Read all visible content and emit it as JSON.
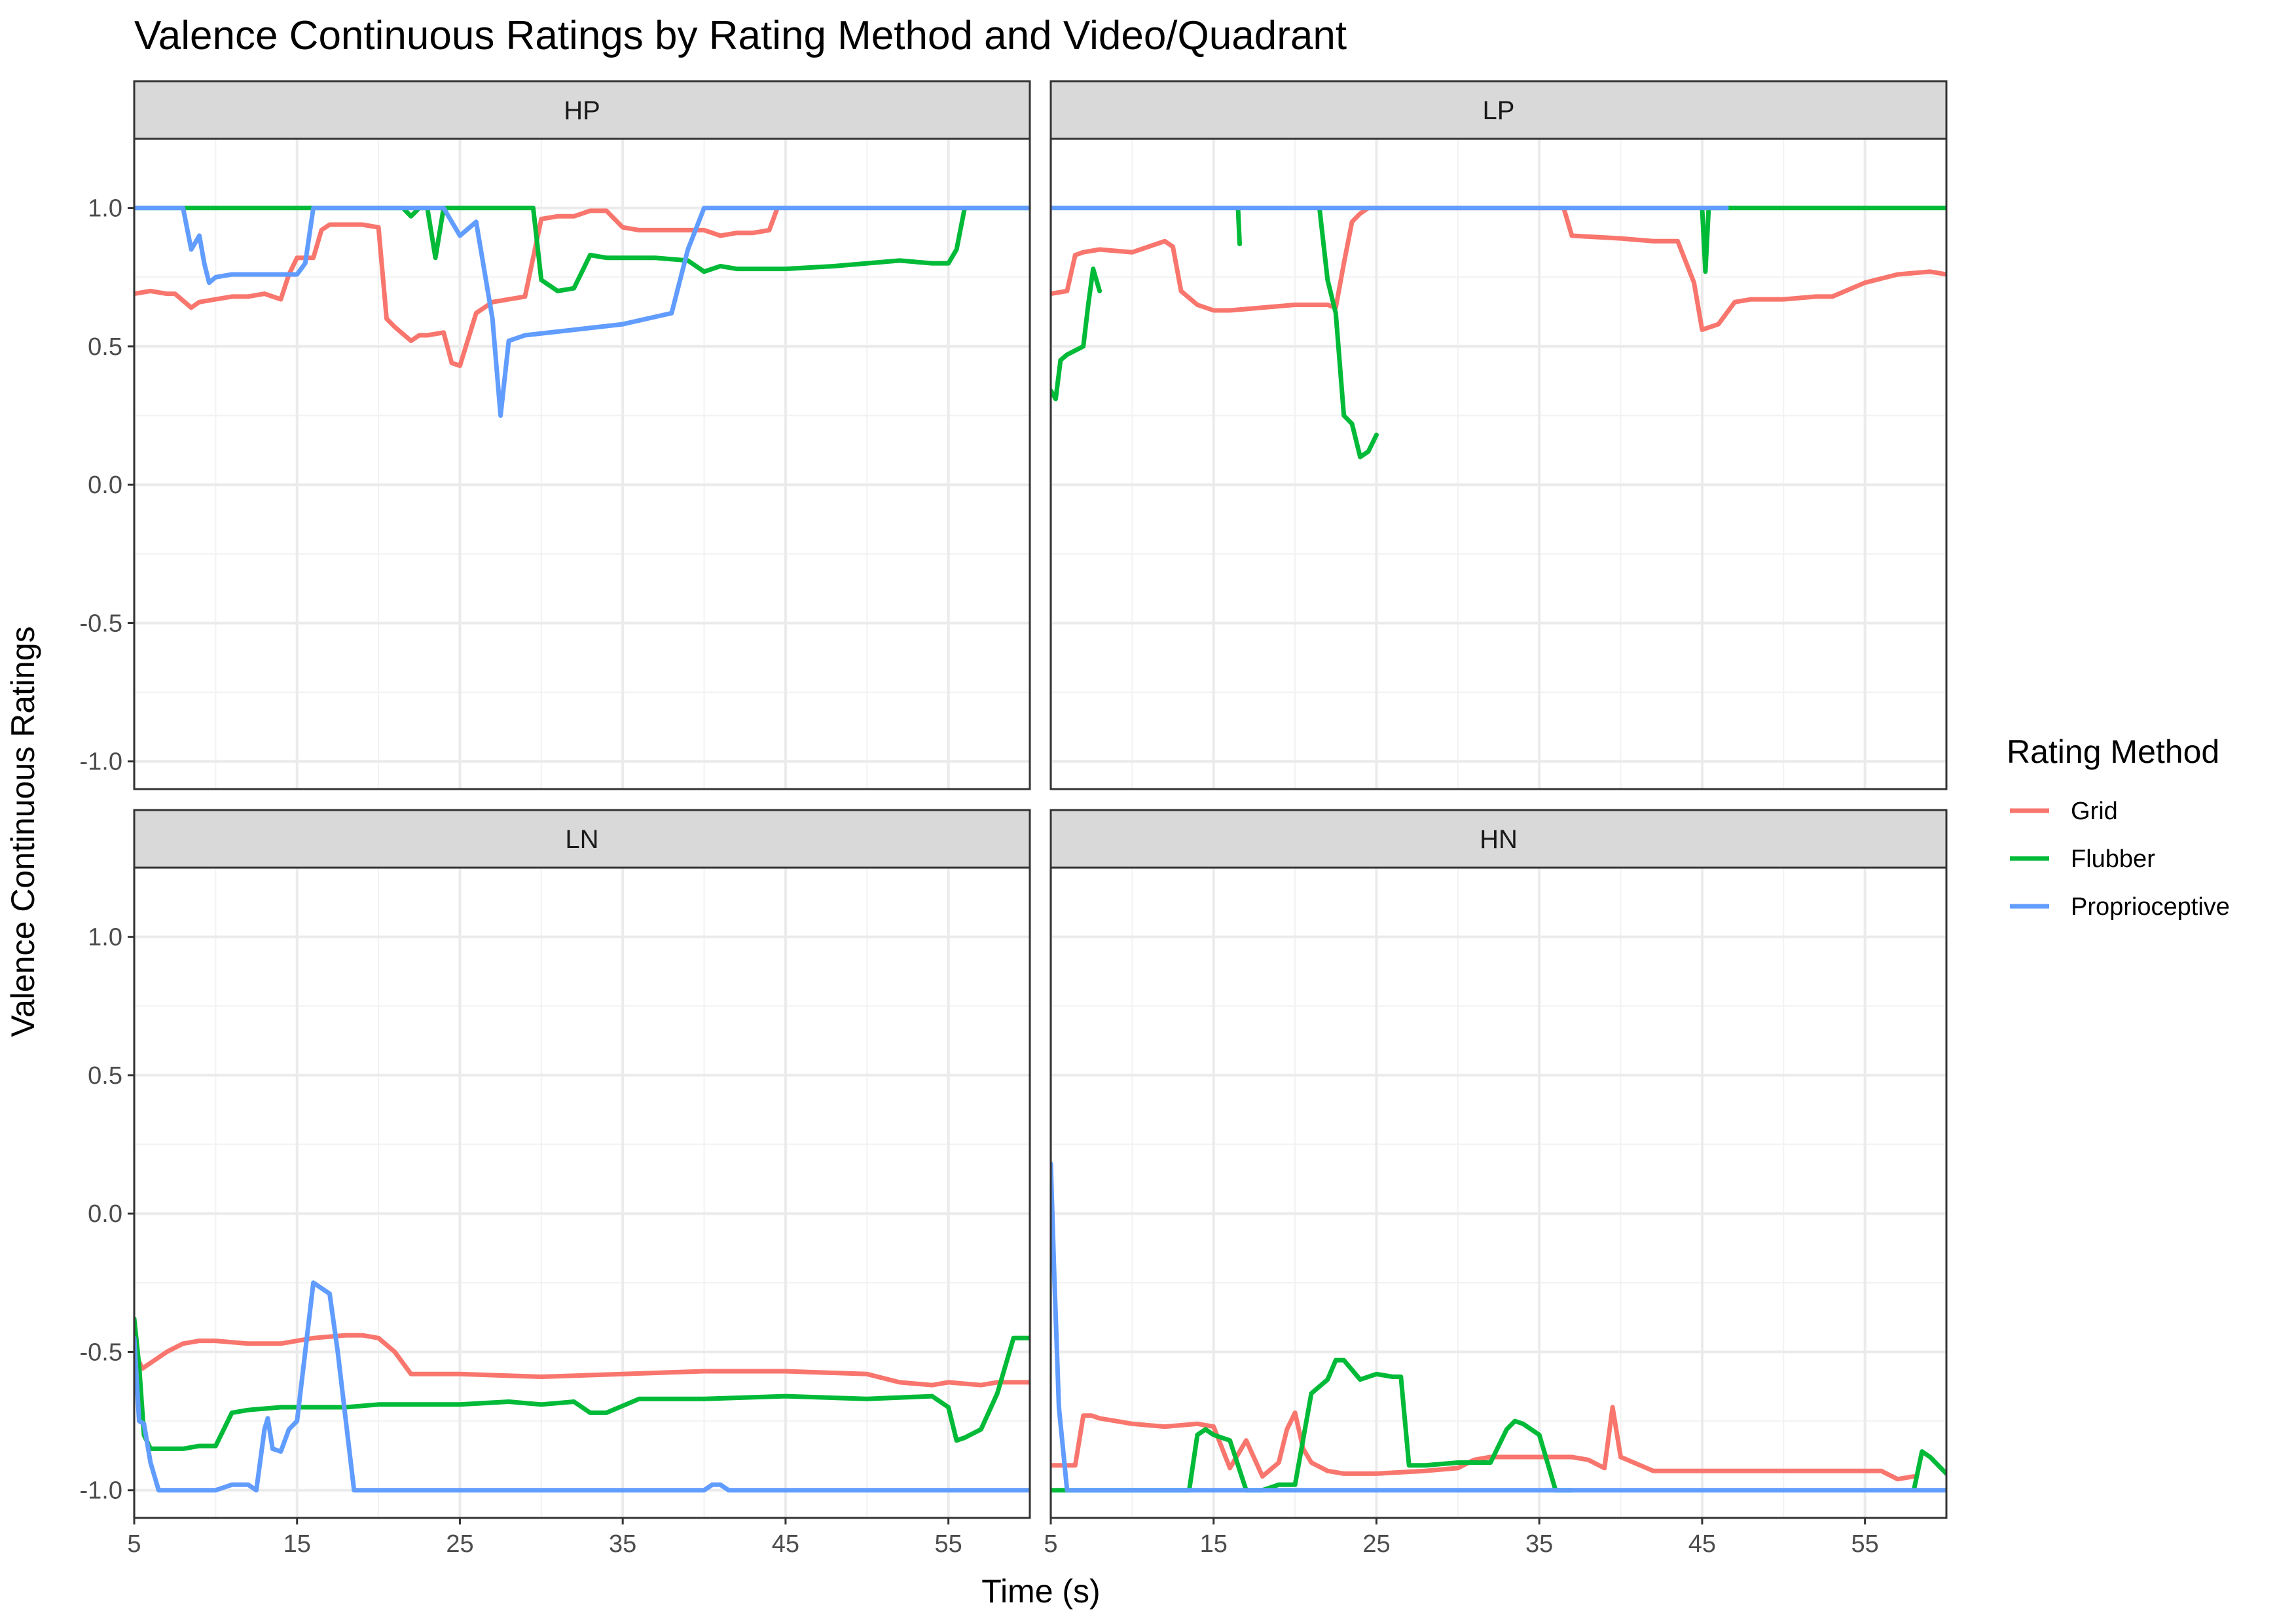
{
  "chart_data": {
    "type": "line",
    "title": "Valence Continuous Ratings by Rating Method and Video/Quadrant",
    "xlabel": "Time (s)",
    "ylabel": "Valence Continuous Ratings",
    "xlim": [
      5,
      60
    ],
    "ylim": [
      -1.1,
      1.25
    ],
    "x_ticks": [
      5,
      15,
      25,
      35,
      45,
      55
    ],
    "x_tick_labels": [
      "5",
      "15",
      "25",
      "35",
      "45",
      "55"
    ],
    "y_ticks": [
      1.0,
      0.5,
      0.0,
      -0.5,
      -1.0
    ],
    "y_tick_labels": [
      "1.0",
      "0.5",
      "0.0",
      "-0.5",
      "-1.0"
    ],
    "grid": true,
    "legend": {
      "title": "Rating Method",
      "position": "right",
      "entries": [
        "Grid",
        "Flubber",
        "Proprioceptive"
      ]
    },
    "colors": {
      "Grid": "#F8766D",
      "Flubber": "#00BA38",
      "Proprioceptive": "#619CFF"
    },
    "panels": [
      {
        "label": "HP",
        "series": [
          {
            "name": "Grid",
            "x": [
              5,
              6,
              7,
              7.5,
              8.5,
              9,
              10,
              11,
              12,
              13,
              14,
              14.5,
              15,
              16,
              16.5,
              17,
              18,
              19,
              20,
              20.5,
              21,
              22,
              22.5,
              23,
              24,
              24.5,
              25,
              26,
              27,
              28,
              29,
              30,
              31,
              32,
              33,
              34,
              35,
              36,
              40,
              41,
              42,
              43,
              44,
              44.5
            ],
            "y": [
              0.69,
              0.7,
              0.69,
              0.69,
              0.64,
              0.66,
              0.67,
              0.68,
              0.68,
              0.69,
              0.67,
              0.76,
              0.82,
              0.82,
              0.92,
              0.94,
              0.94,
              0.94,
              0.93,
              0.6,
              0.57,
              0.52,
              0.54,
              0.54,
              0.55,
              0.44,
              0.43,
              0.62,
              0.66,
              0.67,
              0.68,
              0.96,
              0.97,
              0.97,
              0.99,
              0.99,
              0.93,
              0.92,
              0.92,
              0.9,
              0.91,
              0.91,
              0.92,
              1.0
            ]
          },
          {
            "name": "Flubber",
            "x": [
              5,
              21.5,
              22,
              22.5,
              23,
              23.5,
              24,
              24.5,
              25,
              25.5,
              26,
              27,
              28,
              29.5,
              30,
              31,
              32,
              33,
              34,
              37,
              39,
              40,
              41,
              42,
              45,
              48,
              52,
              54,
              55,
              55.5,
              56,
              60
            ],
            "y": [
              1.0,
              1.0,
              0.97,
              1.0,
              1.0,
              0.82,
              1.0,
              1.0,
              1.0,
              1.0,
              1.0,
              1.0,
              1.0,
              1.0,
              0.74,
              0.7,
              0.71,
              0.83,
              0.82,
              0.82,
              0.81,
              0.77,
              0.79,
              0.78,
              0.78,
              0.79,
              0.81,
              0.8,
              0.8,
              0.85,
              1.0,
              1.0
            ]
          },
          {
            "name": "Proprioceptive",
            "x": [
              5,
              8,
              8.5,
              9,
              9.3,
              9.6,
              10,
              11,
              12,
              13,
              14,
              15,
              15.5,
              16,
              17,
              18,
              19,
              20,
              21,
              22,
              23,
              24,
              25,
              26,
              27,
              27.5,
              28,
              29,
              32,
              35,
              38,
              39,
              40,
              41,
              42,
              45,
              50,
              55,
              60
            ],
            "y": [
              1.0,
              1.0,
              0.85,
              0.9,
              0.8,
              0.73,
              0.75,
              0.76,
              0.76,
              0.76,
              0.76,
              0.76,
              0.8,
              1.0,
              1.0,
              1.0,
              1.0,
              1.0,
              1.0,
              1.0,
              1.0,
              1.0,
              0.9,
              0.95,
              0.6,
              0.25,
              0.52,
              0.54,
              0.56,
              0.58,
              0.62,
              0.85,
              1.0,
              1.0,
              1.0,
              1.0,
              1.0,
              1.0,
              1.0
            ]
          }
        ]
      },
      {
        "label": "LP",
        "series": [
          {
            "name": "Grid",
            "x": [
              5,
              6,
              6.5,
              7,
              8,
              10,
              12,
              12.5,
              13,
              14,
              15,
              16,
              18,
              20,
              22,
              22.5,
              23,
              23.5,
              24,
              24.5,
              36.5,
              37,
              40,
              42,
              43.5,
              44.5,
              45,
              46,
              47,
              48,
              50,
              52,
              53,
              55,
              57,
              59,
              60
            ],
            "y": [
              0.69,
              0.7,
              0.83,
              0.84,
              0.85,
              0.84,
              0.88,
              0.86,
              0.7,
              0.65,
              0.63,
              0.63,
              0.64,
              0.65,
              0.65,
              0.64,
              0.8,
              0.95,
              0.98,
              1.0,
              1.0,
              0.9,
              0.89,
              0.88,
              0.88,
              0.73,
              0.56,
              0.58,
              0.66,
              0.67,
              0.67,
              0.68,
              0.68,
              0.73,
              0.76,
              0.77,
              0.76
            ]
          },
          {
            "name": "Flubber",
            "x": [
              5,
              5.3,
              5.6,
              6,
              7,
              7.3,
              7.6,
              8
            ],
            "y": [
              0.34,
              0.31,
              0.45,
              0.47,
              0.5,
              0.65,
              0.78,
              0.7
            ]
          },
          {
            "name": "Flubber",
            "x": [
              21.5,
              22,
              22.5,
              23,
              23.5,
              24,
              24.5,
              25
            ],
            "y": [
              1.0,
              0.74,
              0.62,
              0.25,
              0.22,
              0.1,
              0.12,
              0.18
            ]
          },
          {
            "name": "Flubber",
            "x": [
              16.5,
              16.6
            ],
            "y": [
              1.0,
              0.87
            ]
          },
          {
            "name": "Flubber",
            "x": [
              45,
              45.2,
              45.4,
              46.5,
              60
            ],
            "y": [
              1.0,
              0.77,
              1.0,
              1.0,
              1.0
            ]
          },
          {
            "name": "Proprioceptive",
            "x": [
              5,
              46.5
            ],
            "y": [
              1.0,
              1.0
            ]
          }
        ]
      },
      {
        "label": "LN",
        "series": [
          {
            "name": "Grid",
            "x": [
              5,
              5.5,
              6,
              7,
              8,
              9,
              10,
              12,
              14,
              16,
              18,
              19,
              20,
              21,
              22,
              23,
              25,
              30,
              35,
              40,
              45,
              50,
              52,
              54,
              55,
              57,
              58,
              60
            ],
            "y": [
              -0.5,
              -0.56,
              -0.54,
              -0.5,
              -0.47,
              -0.46,
              -0.46,
              -0.47,
              -0.47,
              -0.45,
              -0.44,
              -0.44,
              -0.45,
              -0.5,
              -0.58,
              -0.58,
              -0.58,
              -0.59,
              -0.58,
              -0.57,
              -0.57,
              -0.58,
              -0.61,
              -0.62,
              -0.61,
              -0.62,
              -0.61,
              -0.61
            ]
          },
          {
            "name": "Flubber",
            "x": [
              5,
              5.3,
              5.6,
              6,
              7,
              8,
              9,
              10,
              11,
              12,
              14,
              16,
              18,
              20,
              25,
              28,
              30,
              32,
              33,
              34,
              36,
              40,
              45,
              50,
              54,
              55,
              55.5,
              56,
              57,
              58,
              59,
              60
            ],
            "y": [
              -0.38,
              -0.55,
              -0.8,
              -0.85,
              -0.85,
              -0.85,
              -0.84,
              -0.84,
              -0.72,
              -0.71,
              -0.7,
              -0.7,
              -0.7,
              -0.69,
              -0.69,
              -0.68,
              -0.69,
              -0.68,
              -0.72,
              -0.72,
              -0.67,
              -0.67,
              -0.66,
              -0.67,
              -0.66,
              -0.7,
              -0.82,
              -0.81,
              -0.78,
              -0.65,
              -0.45,
              -0.45
            ]
          },
          {
            "name": "Proprioceptive",
            "x": [
              5,
              5.3,
              5.6,
              6,
              6.5,
              7,
              8,
              10,
              11,
              12,
              12.5,
              13,
              13.2,
              13.5,
              14,
              14.5,
              15,
              15.5,
              16,
              17,
              17.5,
              18,
              18.5,
              19,
              25,
              30,
              35,
              40,
              40.5,
              41,
              41.5,
              42,
              60
            ],
            "y": [
              -0.45,
              -0.75,
              -0.76,
              -0.9,
              -1.0,
              -1.0,
              -1.0,
              -1.0,
              -0.98,
              -0.98,
              -1.0,
              -0.78,
              -0.74,
              -0.85,
              -0.86,
              -0.78,
              -0.75,
              -0.5,
              -0.25,
              -0.29,
              -0.5,
              -0.75,
              -1.0,
              -1.0,
              -1.0,
              -1.0,
              -1.0,
              -1.0,
              -0.98,
              -0.98,
              -1.0,
              -1.0,
              -1.0
            ]
          }
        ]
      },
      {
        "label": "HN",
        "series": [
          {
            "name": "Grid",
            "x": [
              5,
              6.5,
              7,
              7.5,
              8,
              9,
              10,
              12,
              14,
              15,
              16,
              17,
              18,
              19,
              19.5,
              20,
              20.5,
              21,
              22,
              23,
              25,
              28,
              30,
              31,
              32,
              35,
              37,
              38,
              39,
              39.5,
              40,
              42,
              45,
              50,
              53,
              55,
              56,
              57,
              58
            ],
            "y": [
              -0.91,
              -0.91,
              -0.73,
              -0.73,
              -0.74,
              -0.75,
              -0.76,
              -0.77,
              -0.76,
              -0.77,
              -0.92,
              -0.82,
              -0.95,
              -0.9,
              -0.78,
              -0.72,
              -0.85,
              -0.9,
              -0.93,
              -0.94,
              -0.94,
              -0.93,
              -0.92,
              -0.89,
              -0.88,
              -0.88,
              -0.88,
              -0.89,
              -0.92,
              -0.7,
              -0.88,
              -0.93,
              -0.93,
              -0.93,
              -0.93,
              -0.93,
              -0.93,
              -0.96,
              -0.95
            ]
          },
          {
            "name": "Flubber",
            "x": [
              5,
              13.5,
              14,
              14.5,
              15,
              16,
              17,
              17.5,
              18,
              19,
              20,
              21,
              22,
              22.5,
              23,
              24,
              25,
              26,
              26.5,
              27,
              28,
              30,
              32,
              33,
              33.5,
              34,
              35,
              36,
              37
            ],
            "y": [
              -1.0,
              -1.0,
              -0.8,
              -0.78,
              -0.8,
              -0.82,
              -1.0,
              -1.0,
              -1.0,
              -0.98,
              -0.98,
              -0.65,
              -0.6,
              -0.53,
              -0.53,
              -0.6,
              -0.58,
              -0.59,
              -0.59,
              -0.91,
              -0.91,
              -0.9,
              -0.9,
              -0.78,
              -0.75,
              -0.76,
              -0.8,
              -1.0,
              -1.0
            ]
          },
          {
            "name": "Flubber",
            "x": [
              58,
              58.5,
              59,
              60
            ],
            "y": [
              -1.0,
              -0.86,
              -0.88,
              -0.94
            ]
          },
          {
            "name": "Proprioceptive",
            "x": [
              5,
              5.2,
              5.5,
              6,
              6.5,
              7,
              60
            ],
            "y": [
              0.18,
              -0.2,
              -0.7,
              -1.0,
              -1.0,
              -1.0,
              -1.0
            ]
          }
        ]
      }
    ]
  }
}
